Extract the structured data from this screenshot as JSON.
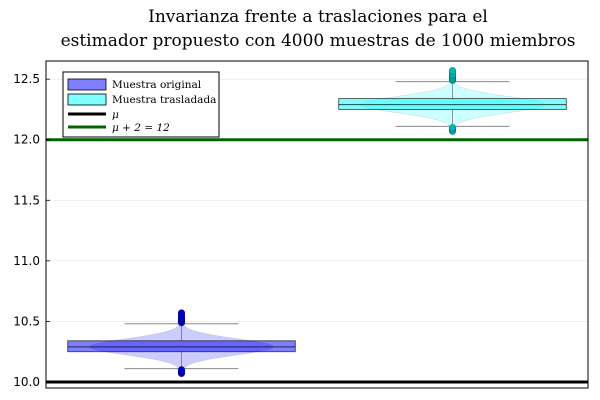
{
  "chart_data": {
    "type": "box-violin",
    "title_lines": [
      "Invarianza frente a traslaciones para el",
      "estimador propuesto con 4000 muestras de 1000 miembros"
    ],
    "xlabel": "",
    "ylabel": "",
    "ylim": [
      9.95,
      12.65
    ],
    "yticks": [
      10.0,
      10.5,
      11.0,
      11.5,
      12.0,
      12.5
    ],
    "ytick_labels": [
      "10.0",
      "10.5",
      "11.0",
      "11.5",
      "12.0",
      "12.5"
    ],
    "grid": true,
    "legend_position": "top-left",
    "series": [
      {
        "name": "Muestra original",
        "color": "#0000ff",
        "outlier_color": "#0000cc",
        "whisker_low": 10.11,
        "q1": 10.25,
        "median": 10.29,
        "q3": 10.34,
        "whisker_high": 10.48,
        "outliers_high": [
          10.49,
          10.5,
          10.51,
          10.52,
          10.53,
          10.54,
          10.56,
          10.57
        ],
        "outliers_low": [
          10.07,
          10.08,
          10.09,
          10.1
        ]
      },
      {
        "name": "Muestra trasladada",
        "color": "#00ffff",
        "outlier_color": "#00b8b8",
        "whisker_low": 12.11,
        "q1": 12.25,
        "median": 12.29,
        "q3": 12.34,
        "whisker_high": 12.48,
        "outliers_high": [
          12.49,
          12.5,
          12.51,
          12.52,
          12.53,
          12.54,
          12.56,
          12.57
        ],
        "outliers_low": [
          12.07,
          12.08,
          12.09,
          12.1
        ]
      }
    ],
    "hlines": [
      {
        "name": "μ",
        "value": 10.0,
        "color": "#000000"
      },
      {
        "name": "μ + 2 = 12",
        "value": 12.0,
        "color": "#006400"
      }
    ]
  }
}
